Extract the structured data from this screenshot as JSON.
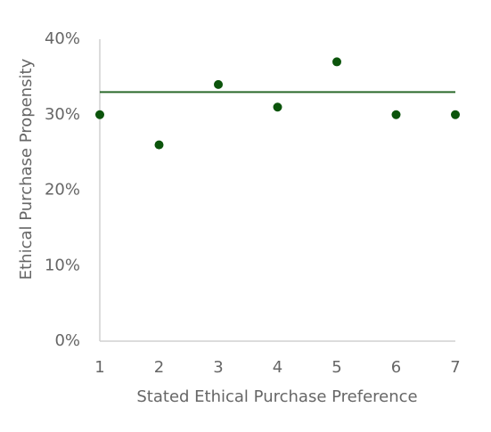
{
  "chart_data": {
    "type": "scatter",
    "x_label": "Stated Ethical Purchase Preference",
    "y_label": "Ethical Purchase Propensity",
    "series": [
      {
        "x": [
          1,
          2,
          3,
          4,
          5,
          6,
          7
        ],
        "values": [
          30,
          26,
          34,
          31,
          37,
          30,
          30
        ],
        "color": "#0b540b"
      }
    ],
    "reference_line": {
      "value": 33,
      "color": "#2b6a2b"
    },
    "xlim": [
      1,
      7
    ],
    "xticks": [
      1,
      2,
      3,
      4,
      5,
      6,
      7
    ],
    "ylim": [
      0,
      40
    ],
    "yticks": [
      {
        "value": 0,
        "label": "0%"
      },
      {
        "value": 10,
        "label": "10%"
      },
      {
        "value": 20,
        "label": "20%"
      },
      {
        "value": 30,
        "label": "30%"
      },
      {
        "value": 40,
        "label": "40%"
      }
    ],
    "grid": false
  }
}
